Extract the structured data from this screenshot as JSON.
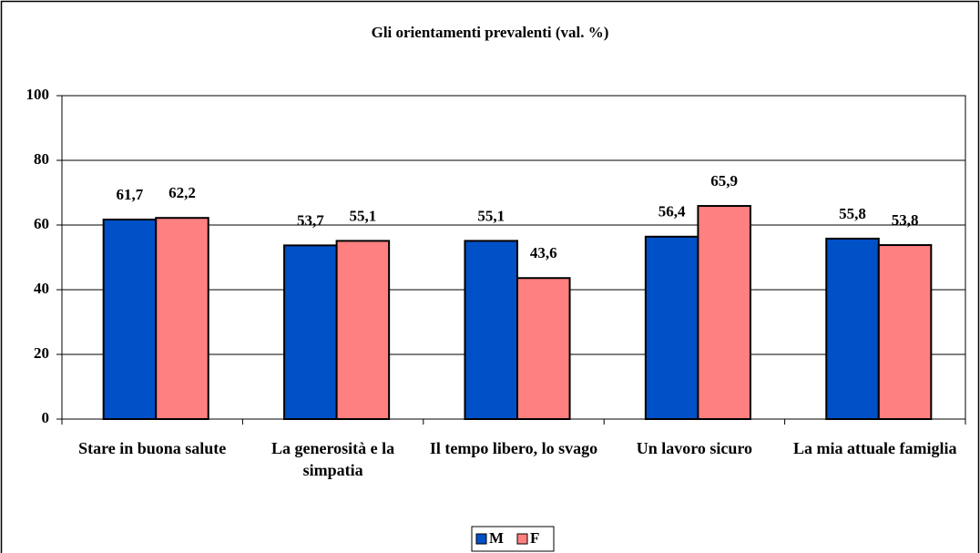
{
  "chart_data": {
    "type": "bar",
    "title": "Gli orientamenti prevalenti (val. %)",
    "categories": [
      "Stare in buona salute",
      "La generosità e la simpatia",
      "Il tempo libero, lo svago",
      "Un lavoro sicuro",
      "La mia attuale famiglia"
    ],
    "series": [
      {
        "name": "M",
        "color": "#0050c8",
        "values": [
          61.7,
          53.7,
          55.1,
          56.4,
          55.8
        ],
        "value_labels": [
          "61,7",
          "53,7",
          "55,1",
          "56,4",
          "55,8"
        ]
      },
      {
        "name": "F",
        "color": "#ff8080",
        "values": [
          62.2,
          55.1,
          43.6,
          65.9,
          53.8
        ],
        "value_labels": [
          "62,2",
          "55,1",
          "43,6",
          "65,9",
          "53,8"
        ]
      }
    ],
    "ylim": [
      0,
      100
    ],
    "yticks": [
      0,
      20,
      40,
      60,
      80,
      100
    ],
    "grid": true,
    "legend": "bottom"
  }
}
